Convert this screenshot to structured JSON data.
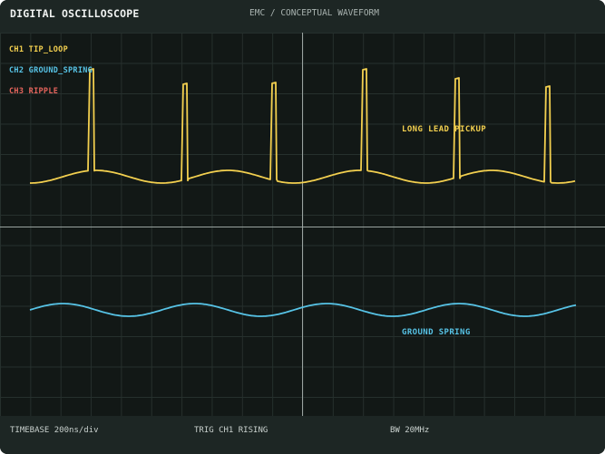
{
  "header": {
    "title": "DIGITAL OSCILLOSCOPE",
    "subtitle": "EMC / CONCEPTUAL WAVEFORM"
  },
  "legend": [
    {
      "label": "CH1 TIP_LOOP",
      "color": "#f2cf4f"
    },
    {
      "label": "CH2 GROUND_SPRING",
      "color": "#57c3e6"
    },
    {
      "label": "CH3 RIPPLE",
      "color": "#e5645c"
    }
  ],
  "annotations": {
    "long_lead": "LONG LEAD PICKUP",
    "ground_spring": "GROUND SPRING"
  },
  "footer": {
    "timebase": "TIMEBASE  200ns/div",
    "trigger": "TRIG  CH1  RISING",
    "bandwidth": "BW  20MHz"
  },
  "colors": {
    "background": "#121816",
    "bar": "#1d2624",
    "grid": "#26302d",
    "axis": "#9aa3a0",
    "ch1": "#f2cf4f",
    "ch2": "#57c3e6",
    "ch3": "#e5645c"
  }
}
